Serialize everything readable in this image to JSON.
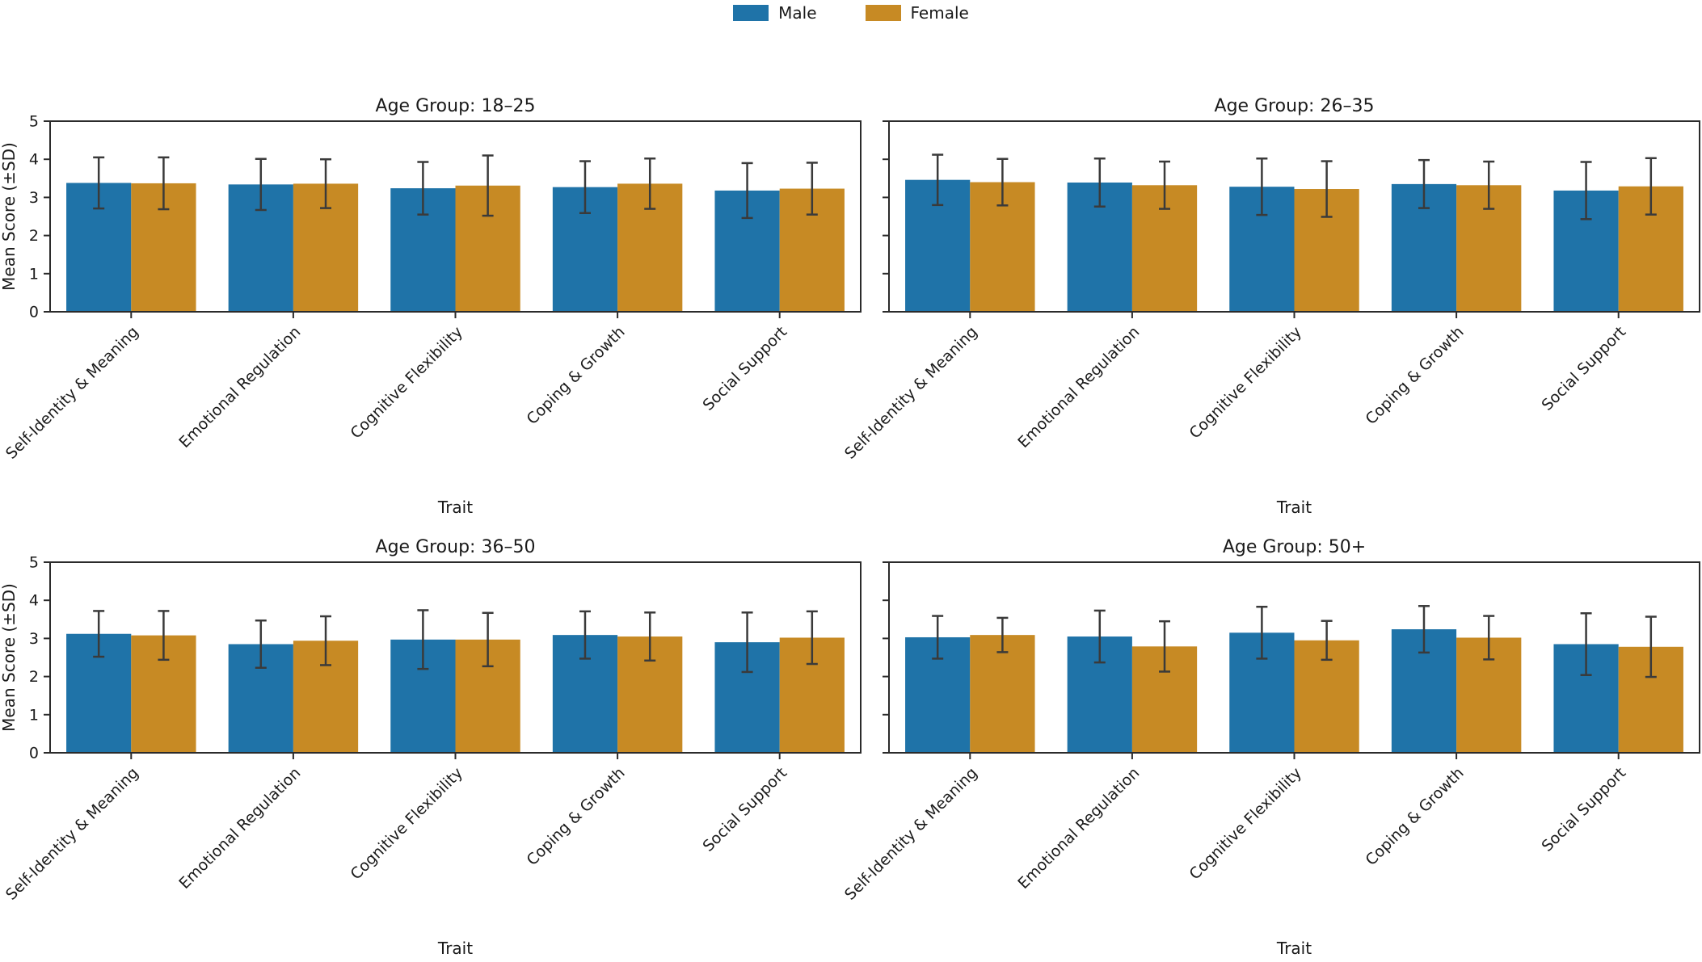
{
  "figure": {
    "background": "#ffffff"
  },
  "legend": {
    "position": "top-center",
    "items": [
      {
        "label": "Male",
        "color": "#1f73a8"
      },
      {
        "label": "Female",
        "color": "#c78a24"
      }
    ]
  },
  "chart_data": {
    "type": "bar",
    "grid": false,
    "error_bars": "±SD",
    "axis_color": "#2b2b2b",
    "errorbar_color": "#3a3a3a",
    "text_color": "#1a1a1a",
    "xlabel": "Trait",
    "ylabel": "Mean Score (±SD)",
    "ylim": [
      0,
      5
    ],
    "yticks": [
      0,
      1,
      2,
      3,
      4,
      5
    ],
    "categories": [
      "Self-Identity & Meaning",
      "Emotional Regulation",
      "Cognitive Flexibility",
      "Coping & Growth",
      "Social Support"
    ],
    "subplots": [
      {
        "title": "Age Group: 18–25",
        "show_y_labels": true,
        "series": [
          {
            "name": "Male",
            "color": "#1f73a8",
            "means": [
              3.38,
              3.34,
              3.24,
              3.27,
              3.18
            ],
            "sd": [
              0.67,
              0.67,
              0.69,
              0.68,
              0.72
            ]
          },
          {
            "name": "Female",
            "color": "#c78a24",
            "means": [
              3.37,
              3.36,
              3.31,
              3.36,
              3.23
            ],
            "sd": [
              0.68,
              0.64,
              0.79,
              0.66,
              0.68
            ]
          }
        ]
      },
      {
        "title": "Age Group: 26–35",
        "show_y_labels": false,
        "series": [
          {
            "name": "Male",
            "color": "#1f73a8",
            "means": [
              3.46,
              3.39,
              3.28,
              3.35,
              3.18
            ],
            "sd": [
              0.66,
              0.63,
              0.74,
              0.63,
              0.75
            ]
          },
          {
            "name": "Female",
            "color": "#c78a24",
            "means": [
              3.4,
              3.32,
              3.22,
              3.32,
              3.29
            ],
            "sd": [
              0.61,
              0.62,
              0.73,
              0.62,
              0.74
            ]
          }
        ]
      },
      {
        "title": "Age Group: 36–50",
        "show_y_labels": true,
        "series": [
          {
            "name": "Male",
            "color": "#1f73a8",
            "means": [
              3.12,
              2.85,
              2.97,
              3.09,
              2.9
            ],
            "sd": [
              0.6,
              0.62,
              0.77,
              0.62,
              0.78
            ]
          },
          {
            "name": "Female",
            "color": "#c78a24",
            "means": [
              3.08,
              2.94,
              2.97,
              3.05,
              3.02
            ],
            "sd": [
              0.64,
              0.64,
              0.7,
              0.63,
              0.69
            ]
          }
        ]
      },
      {
        "title": "Age Group: 50+",
        "show_y_labels": false,
        "series": [
          {
            "name": "Male",
            "color": "#1f73a8",
            "means": [
              3.03,
              3.05,
              3.15,
              3.24,
              2.85
            ],
            "sd": [
              0.56,
              0.68,
              0.68,
              0.61,
              0.81
            ]
          },
          {
            "name": "Female",
            "color": "#c78a24",
            "means": [
              3.09,
              2.79,
              2.95,
              3.02,
              2.78
            ],
            "sd": [
              0.45,
              0.66,
              0.51,
              0.57,
              0.79
            ]
          }
        ]
      }
    ]
  }
}
